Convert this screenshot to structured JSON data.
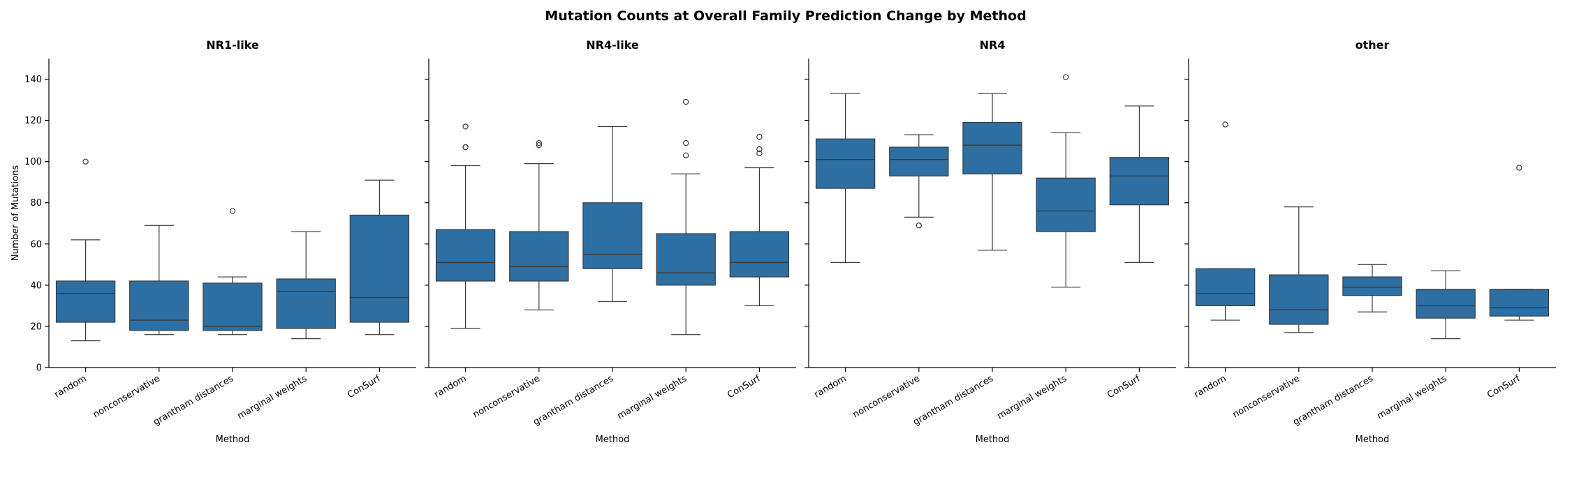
{
  "chart_data": {
    "type": "box",
    "title": "Mutation Counts at Overall Family Prediction Change by Method",
    "xlabel": "Method",
    "ylabel": "Number of Mutations",
    "ylim": [
      0,
      150
    ],
    "yticks": [
      0,
      20,
      40,
      60,
      80,
      100,
      120,
      140
    ],
    "categories": [
      "random",
      "nonconservative",
      "grantham distances",
      "marginal weights",
      "ConSurf"
    ],
    "box_color": "#2e6fa3",
    "line_color": "#3a3a3a",
    "grid": false,
    "legend": "none",
    "panels": [
      {
        "title": "NR1-like",
        "boxes": [
          {
            "whisker_low": 13,
            "q1": 22,
            "median": 36,
            "q3": 42,
            "whisker_high": 62,
            "outliers": [
              100
            ]
          },
          {
            "whisker_low": 16,
            "q1": 18,
            "median": 23,
            "q3": 42,
            "whisker_high": 69,
            "outliers": []
          },
          {
            "whisker_low": 16,
            "q1": 18,
            "median": 20,
            "q3": 41,
            "whisker_high": 44,
            "outliers": [
              76
            ]
          },
          {
            "whisker_low": 14,
            "q1": 19,
            "median": 37,
            "q3": 43,
            "whisker_high": 66,
            "outliers": []
          },
          {
            "whisker_low": 16,
            "q1": 22,
            "median": 34,
            "q3": 74,
            "whisker_high": 91,
            "outliers": []
          }
        ]
      },
      {
        "title": "NR4-like",
        "boxes": [
          {
            "whisker_low": 19,
            "q1": 42,
            "median": 51,
            "q3": 67,
            "whisker_high": 98,
            "outliers": [
              107,
              107,
              117
            ]
          },
          {
            "whisker_low": 28,
            "q1": 42,
            "median": 49,
            "q3": 66,
            "whisker_high": 99,
            "outliers": [
              108,
              109
            ]
          },
          {
            "whisker_low": 32,
            "q1": 48,
            "median": 55,
            "q3": 80,
            "whisker_high": 117,
            "outliers": []
          },
          {
            "whisker_low": 16,
            "q1": 40,
            "median": 46,
            "q3": 65,
            "whisker_high": 94,
            "outliers": [
              103,
              109,
              129
            ]
          },
          {
            "whisker_low": 30,
            "q1": 44,
            "median": 51,
            "q3": 66,
            "whisker_high": 97,
            "outliers": [
              104,
              106,
              112
            ]
          }
        ]
      },
      {
        "title": "NR4",
        "boxes": [
          {
            "whisker_low": 51,
            "q1": 87,
            "median": 101,
            "q3": 111,
            "whisker_high": 133,
            "outliers": []
          },
          {
            "whisker_low": 73,
            "q1": 93,
            "median": 101,
            "q3": 107,
            "whisker_high": 113,
            "outliers": [
              69
            ]
          },
          {
            "whisker_low": 57,
            "q1": 94,
            "median": 108,
            "q3": 119,
            "whisker_high": 133,
            "outliers": []
          },
          {
            "whisker_low": 39,
            "q1": 66,
            "median": 76,
            "q3": 92,
            "whisker_high": 114,
            "outliers": [
              141
            ]
          },
          {
            "whisker_low": 51,
            "q1": 79,
            "median": 93,
            "q3": 102,
            "whisker_high": 127,
            "outliers": []
          }
        ]
      },
      {
        "title": "other",
        "boxes": [
          {
            "whisker_low": 23,
            "q1": 30,
            "median": 36,
            "q3": 48,
            "whisker_high": 48,
            "outliers": [
              118
            ]
          },
          {
            "whisker_low": 17,
            "q1": 21,
            "median": 28,
            "q3": 45,
            "whisker_high": 78,
            "outliers": []
          },
          {
            "whisker_low": 27,
            "q1": 35,
            "median": 39,
            "q3": 44,
            "whisker_high": 50,
            "outliers": []
          },
          {
            "whisker_low": 14,
            "q1": 24,
            "median": 30,
            "q3": 38,
            "whisker_high": 47,
            "outliers": []
          },
          {
            "whisker_low": 23,
            "q1": 25,
            "median": 29,
            "q3": 38,
            "whisker_high": 38,
            "outliers": [
              97
            ]
          }
        ]
      }
    ]
  }
}
